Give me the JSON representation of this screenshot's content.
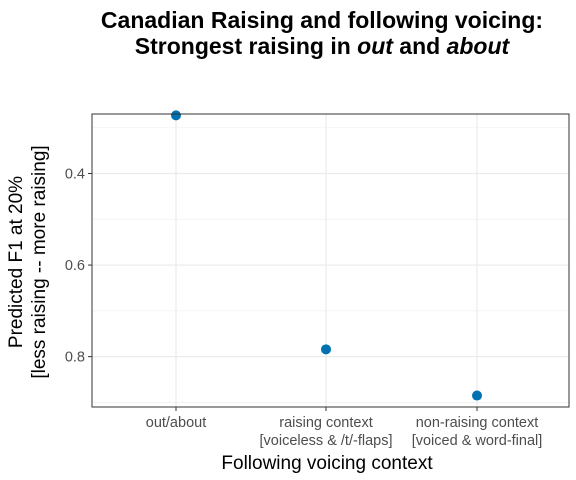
{
  "chart_data": {
    "type": "scatter",
    "title": {
      "line1": "Canadian Raising and following voicing:",
      "line2_prefix": "Strongest raising in ",
      "line2_em1": "out",
      "line2_mid": " and ",
      "line2_em2": "about"
    },
    "xlabel": "Following voicing context",
    "ylabel_line1": "Predicted F1 at 20%",
    "ylabel_line2": "[less raising -- more raising]",
    "y_reversed": true,
    "ylim": [
      0.27,
      0.91
    ],
    "yticks": [
      0.4,
      0.6,
      0.8
    ],
    "ytick_labels": [
      "0.4",
      "0.6",
      "0.8"
    ],
    "categories": [
      {
        "line1": "out/about",
        "line2": ""
      },
      {
        "line1": "raising context",
        "line2": "[voiceless & /t/-flaps]"
      },
      {
        "line1": "non-raising context",
        "line2": "[voiced & word-final]"
      }
    ],
    "values": [
      0.273,
      0.784,
      0.885
    ],
    "point_color": "#0072B2",
    "grid": true,
    "legend": "none"
  }
}
